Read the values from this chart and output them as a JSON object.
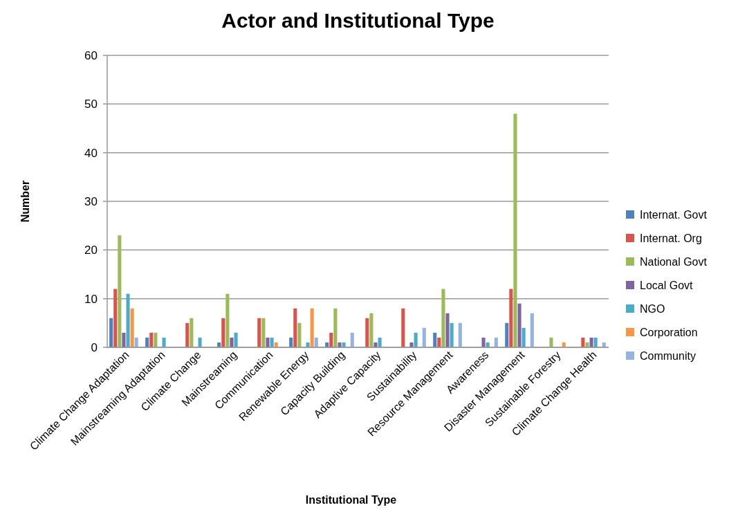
{
  "chart_data": {
    "type": "bar",
    "title": "Actor and Institutional Type",
    "xlabel": "Institutional Type",
    "ylabel": "Number",
    "categories": [
      "Climate Change Adaptation",
      "Mainstreaming Adaptation",
      "Climate Change",
      "Mainstreaming",
      "Communication",
      "Renewable Energy",
      "Capacity Building",
      "Adaptive Capacity",
      "Sustainability",
      "Resource Management",
      "Awareness",
      "Disaster Management",
      "Sustainable Forestry",
      "Climate Change Health"
    ],
    "series": [
      {
        "name": "Internat. Govt",
        "color": "#4f81bd",
        "values": [
          6,
          2,
          0,
          1,
          0,
          2,
          1,
          0,
          0,
          3,
          0,
          5,
          0,
          0
        ]
      },
      {
        "name": "Internat. Org",
        "color": "#d9534f",
        "values": [
          12,
          3,
          5,
          6,
          6,
          8,
          3,
          6,
          8,
          2,
          0,
          12,
          0,
          2
        ]
      },
      {
        "name": "National Govt",
        "color": "#9bbb59",
        "values": [
          23,
          3,
          6,
          11,
          6,
          5,
          8,
          7,
          0,
          12,
          0,
          48,
          2,
          1
        ]
      },
      {
        "name": "Local Govt",
        "color": "#8064a2",
        "values": [
          3,
          0,
          0,
          2,
          2,
          0,
          1,
          1,
          1,
          7,
          2,
          9,
          0,
          2
        ]
      },
      {
        "name": "NGO",
        "color": "#4bacc6",
        "values": [
          11,
          2,
          2,
          3,
          2,
          1,
          1,
          2,
          3,
          5,
          1,
          4,
          0,
          2
        ]
      },
      {
        "name": "Corporation",
        "color": "#f79646",
        "values": [
          8,
          0,
          0,
          0,
          1,
          8,
          0,
          0,
          0,
          0,
          0,
          0,
          1,
          0
        ]
      },
      {
        "name": "Community",
        "color": "#95b3e0",
        "values": [
          2,
          0,
          0,
          0,
          0,
          2,
          3,
          0,
          4,
          5,
          2,
          7,
          0,
          1
        ]
      }
    ],
    "ylim": [
      0,
      60
    ],
    "yticks": [
      0,
      10,
      20,
      30,
      40,
      50,
      60
    ],
    "grid": "y",
    "legend": "right"
  }
}
